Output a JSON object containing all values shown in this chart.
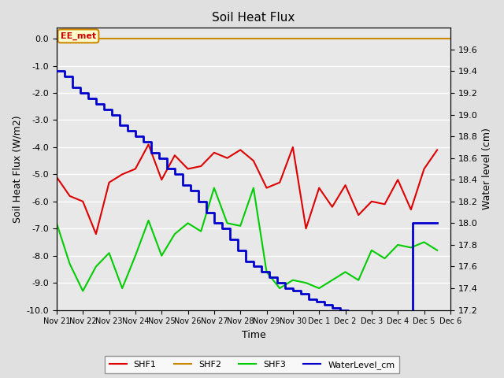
{
  "title": "Soil Heat Flux",
  "xlabel": "Time",
  "ylabel_left": "Soil Heat Flux (W/m2)",
  "ylabel_right": "Water level (cm)",
  "ylim_left": [
    -10.0,
    0.4
  ],
  "ylim_right": [
    17.2,
    19.8
  ],
  "yticks_left": [
    0.0,
    -1.0,
    -2.0,
    -3.0,
    -4.0,
    -5.0,
    -6.0,
    -7.0,
    -8.0,
    -9.0,
    -10.0
  ],
  "yticks_right": [
    17.2,
    17.4,
    17.6,
    17.8,
    18.0,
    18.2,
    18.4,
    18.6,
    18.8,
    19.0,
    19.2,
    19.4,
    19.6
  ],
  "background_color": "#e0e0e0",
  "plot_bg_color": "#e8e8e8",
  "grid_color": "white",
  "annotation_text": "EE_met",
  "annotation_bg": "#ffffcc",
  "annotation_border": "#cc8800",
  "annotation_text_color": "#cc0000",
  "shf2_color": "#cc8800",
  "shf1_color": "#dd0000",
  "shf3_color": "#00cc00",
  "water_color": "#0000cc",
  "x_ticks": [
    "Nov 21",
    "Nov 22",
    "Nov 23",
    "Nov 24",
    "Nov 25",
    "Nov 26",
    "Nov 27",
    "Nov 28",
    "Nov 29",
    "Nov 30",
    "Dec 1",
    "Dec 2",
    "Dec 3",
    "Dec 4",
    "Dec 5",
    "Dec 6"
  ],
  "shf1_x": [
    0,
    0.5,
    1.0,
    1.5,
    2.0,
    2.5,
    3.0,
    3.5,
    4.0,
    4.5,
    5.0,
    5.5,
    6.0,
    6.5,
    7.0,
    7.5,
    8.0,
    8.5,
    9.0,
    9.5,
    10.0,
    10.5,
    11.0,
    11.5,
    12.0,
    12.5,
    13.0,
    13.5,
    14.0,
    14.5
  ],
  "shf1_y": [
    -5.1,
    -5.8,
    -6.0,
    -7.2,
    -5.3,
    -5.0,
    -4.8,
    -3.9,
    -5.2,
    -4.3,
    -4.8,
    -4.7,
    -4.2,
    -4.4,
    -4.1,
    -4.5,
    -5.5,
    -5.3,
    -4.0,
    -7.0,
    -5.5,
    -6.2,
    -5.4,
    -6.5,
    -6.0,
    -6.1,
    -5.2,
    -6.3,
    -4.8,
    -4.1
  ],
  "shf3_x": [
    0,
    0.5,
    1.0,
    1.5,
    2.0,
    2.5,
    3.0,
    3.5,
    4.0,
    4.5,
    5.0,
    5.5,
    6.0,
    6.5,
    7.0,
    7.5,
    8.0,
    8.5,
    9.0,
    9.5,
    10.0,
    10.5,
    11.0,
    11.5,
    12.0,
    12.5,
    13.0,
    13.5,
    14.0,
    14.5
  ],
  "shf3_y": [
    -6.8,
    -8.3,
    -9.3,
    -8.4,
    -7.9,
    -9.2,
    -8.0,
    -6.7,
    -8.0,
    -7.2,
    -6.8,
    -7.1,
    -5.5,
    -6.8,
    -6.9,
    -5.5,
    -8.6,
    -9.2,
    -8.9,
    -9.0,
    -9.2,
    -8.9,
    -8.6,
    -8.9,
    -7.8,
    -8.1,
    -7.6,
    -7.7,
    -7.5,
    -7.8
  ],
  "water_x": [
    0.0,
    0.3,
    0.6,
    0.9,
    1.2,
    1.5,
    1.8,
    2.1,
    2.4,
    2.7,
    3.0,
    3.3,
    3.6,
    3.9,
    4.2,
    4.5,
    4.8,
    5.1,
    5.4,
    5.7,
    6.0,
    6.3,
    6.6,
    6.9,
    7.2,
    7.5,
    7.8,
    8.1,
    8.4,
    8.7,
    9.0,
    9.3,
    9.6,
    9.9,
    10.2,
    10.5,
    10.8,
    11.1,
    11.4,
    11.7,
    12.0,
    12.3,
    12.6,
    12.9,
    13.2,
    13.5,
    13.55,
    14.0,
    14.5
  ],
  "water_y": [
    19.4,
    19.35,
    19.25,
    19.2,
    19.15,
    19.1,
    19.05,
    19.0,
    18.9,
    18.85,
    18.8,
    18.75,
    18.65,
    18.6,
    18.5,
    18.45,
    18.35,
    18.3,
    18.2,
    18.1,
    18.0,
    17.95,
    17.85,
    17.75,
    17.65,
    17.6,
    17.55,
    17.5,
    17.45,
    17.4,
    17.38,
    17.35,
    17.3,
    17.28,
    17.25,
    17.22,
    17.2,
    17.18,
    17.15,
    17.13,
    17.1,
    17.08,
    17.05,
    17.03,
    17.0,
    17.0,
    18.0,
    18.0,
    18.0
  ]
}
